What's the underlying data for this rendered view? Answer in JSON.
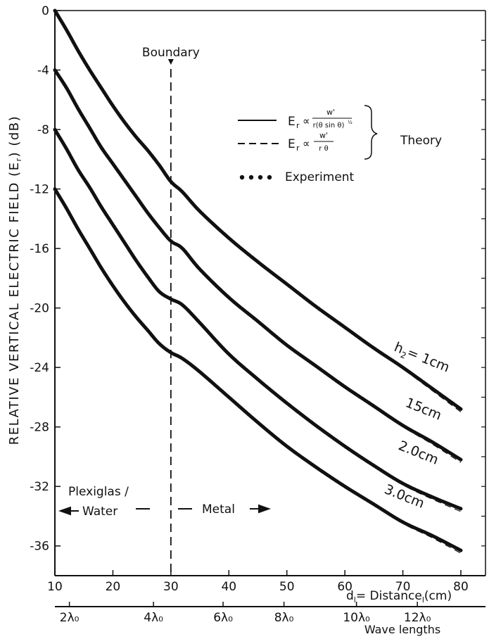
{
  "chart_data": {
    "type": "line",
    "ylabel": "RELATIVE VERTICAL ELECTRIC FIELD (E",
    "ylabel_sub": "r",
    "ylabel_unit": ") (dB)",
    "xlabel": "d",
    "xlabel_sub": "l",
    "xlabel_rest": "= Distance",
    "xlabel_sub2": "l",
    "xlabel_unit": "(cm)",
    "xlim": [
      10,
      80
    ],
    "ylim": [
      -38,
      0
    ],
    "xticks": [
      "10",
      "20",
      "30",
      "40",
      "50",
      "60",
      "70",
      "80"
    ],
    "xtick_values": [
      10,
      20,
      30,
      40,
      50,
      60,
      70,
      80
    ],
    "yticks": [
      "0",
      "-4",
      "-8",
      "-12",
      "-16",
      "-20",
      "-24",
      "-28",
      "-32",
      "-36"
    ],
    "ytick_values": [
      0,
      -4,
      -8,
      -12,
      -16,
      -20,
      -24,
      -28,
      -32,
      -36
    ],
    "wavelength_axis": {
      "label": "Wave lengths",
      "ticks": [
        "2λ₀",
        "4λ₀",
        "6λ₀",
        "8λ₀",
        "10λ₀",
        "12λ₀"
      ],
      "positions_cm": [
        12.5,
        27,
        39,
        49.5,
        62,
        72.5
      ]
    },
    "boundary": {
      "x": 30,
      "label": "Boundary"
    },
    "region_labels": {
      "left_line1": "Plexiglas /",
      "left_line2": "Water",
      "right": "Metal"
    },
    "legend": {
      "theory_label": "Theory",
      "entries": [
        {
          "style": "solid",
          "lhs": "E",
          "lhs_sub": "r",
          "prop": "∝",
          "num": "w'",
          "den": "r(θ sin θ)",
          "den_sup": "½"
        },
        {
          "style": "dashed",
          "lhs": "E",
          "lhs_sub": "r",
          "prop": "∝",
          "num": "w'",
          "den": "r θ"
        },
        {
          "style": "dotted",
          "label": "Experiment"
        }
      ]
    },
    "series": [
      {
        "label": "h",
        "label_sub": "2",
        "label_rest": "= 1cm",
        "x": [
          10,
          12,
          14,
          16,
          18,
          20,
          22,
          24,
          26,
          28,
          30,
          32,
          35,
          40,
          45,
          50,
          55,
          60,
          65,
          70,
          75,
          80
        ],
        "y": [
          0,
          -1.3,
          -2.7,
          -4.0,
          -5.2,
          -6.4,
          -7.5,
          -8.5,
          -9.4,
          -10.4,
          -11.5,
          -12.2,
          -13.5,
          -15.3,
          -16.9,
          -18.4,
          -19.9,
          -21.3,
          -22.7,
          -24.0,
          -25.4,
          -26.8
        ]
      },
      {
        "label": "15cm",
        "x": [
          10,
          12,
          14,
          16,
          18,
          20,
          22,
          24,
          26,
          28,
          30,
          32,
          35,
          40,
          45,
          50,
          55,
          60,
          65,
          70,
          75,
          80
        ],
        "y": [
          -4,
          -5.2,
          -6.6,
          -7.9,
          -9.2,
          -10.3,
          -11.4,
          -12.5,
          -13.6,
          -14.6,
          -15.5,
          -16.0,
          -17.4,
          -19.3,
          -20.9,
          -22.5,
          -23.9,
          -25.3,
          -26.6,
          -27.9,
          -29.0,
          -30.2
        ]
      },
      {
        "label": "2.0cm",
        "x": [
          10,
          12,
          14,
          16,
          18,
          20,
          22,
          24,
          26,
          28,
          30,
          32,
          35,
          40,
          45,
          50,
          55,
          60,
          65,
          70,
          75,
          80
        ],
        "y": [
          -8,
          -9.3,
          -10.7,
          -11.9,
          -13.2,
          -14.4,
          -15.6,
          -16.8,
          -17.9,
          -18.9,
          -19.4,
          -19.8,
          -21.0,
          -23.1,
          -24.8,
          -26.4,
          -27.9,
          -29.3,
          -30.6,
          -31.8,
          -32.7,
          -33.5
        ]
      },
      {
        "label": "3.0cm",
        "x": [
          10,
          12,
          14,
          16,
          18,
          20,
          22,
          24,
          26,
          28,
          30,
          32,
          35,
          40,
          45,
          50,
          55,
          60,
          65,
          70,
          75,
          80
        ],
        "y": [
          -12,
          -13.3,
          -14.7,
          -16.0,
          -17.3,
          -18.5,
          -19.6,
          -20.6,
          -21.5,
          -22.4,
          -23.0,
          -23.4,
          -24.3,
          -26.0,
          -27.7,
          -29.3,
          -30.7,
          -32.0,
          -33.2,
          -34.4,
          -35.3,
          -36.3
        ]
      }
    ]
  }
}
